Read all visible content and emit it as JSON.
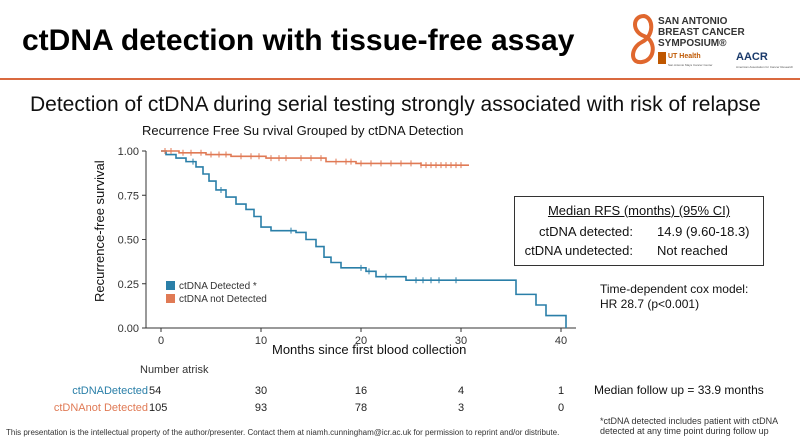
{
  "slide": {
    "title": "ctDNA detection with tissue-free assay",
    "subtitle": "Detection of ctDNA during serial testing strongly associated with risk of relapse"
  },
  "logo": {
    "line1": "SAN ANTONIO",
    "line2": "BREAST CANCER",
    "line3": "SYMPOSIUM®",
    "org1": "UT Health",
    "org1_sub": "San Antonio Mays Cancer Center",
    "org2": "AACR",
    "org2_sub": "American Association for Cancer Research"
  },
  "chart_data": {
    "type": "line",
    "title": "Recurrence Free Su rvival Grouped  by ctDNA Detection",
    "xlabel": "Months since first blood collection",
    "ylabel": "Recurrence-free survival",
    "xlim": [
      -1.5,
      41.5
    ],
    "ylim": [
      0,
      1
    ],
    "x_ticks": [
      0,
      10,
      20,
      30,
      40
    ],
    "y_ticks": [
      0.0,
      0.25,
      0.5,
      0.75,
      1.0
    ],
    "y_tick_labels": [
      "0.00",
      "0.25",
      "0.50",
      "0.75",
      "1.00"
    ],
    "series": [
      {
        "name": "ctDNA Detected *",
        "color": "#2a7fa8",
        "steps": [
          [
            0,
            1.0
          ],
          [
            0.5,
            0.98
          ],
          [
            1.5,
            0.96
          ],
          [
            2.5,
            0.94
          ],
          [
            3.5,
            0.91
          ],
          [
            4.2,
            0.87
          ],
          [
            4.8,
            0.83
          ],
          [
            5.5,
            0.78
          ],
          [
            6.5,
            0.74
          ],
          [
            7.5,
            0.7
          ],
          [
            8.5,
            0.67
          ],
          [
            9.3,
            0.63
          ],
          [
            10.0,
            0.57
          ],
          [
            11.0,
            0.55
          ],
          [
            13.5,
            0.54
          ],
          [
            14.5,
            0.5
          ],
          [
            15.5,
            0.46
          ],
          [
            16.3,
            0.4
          ],
          [
            17.0,
            0.37
          ],
          [
            18.0,
            0.34
          ],
          [
            20.5,
            0.32
          ],
          [
            21.5,
            0.29
          ],
          [
            24.5,
            0.27
          ],
          [
            33.0,
            0.27
          ],
          [
            35.5,
            0.19
          ],
          [
            37.5,
            0.13
          ],
          [
            38.5,
            0.07
          ],
          [
            39.5,
            0.07
          ],
          [
            40.5,
            0.0
          ]
        ],
        "end_x": 40.5,
        "censor_x": [
          3.2,
          6.0,
          13.0,
          20.0,
          20.8,
          22.5,
          25.5,
          26.2,
          27.0,
          27.8,
          29.5
        ]
      },
      {
        "name": "ctDNA not Detected",
        "color": "#e07a55",
        "steps": [
          [
            0,
            1.0
          ],
          [
            1.8,
            0.99
          ],
          [
            4.5,
            0.98
          ],
          [
            7.0,
            0.97
          ],
          [
            10.5,
            0.96
          ],
          [
            16.5,
            0.94
          ],
          [
            19.5,
            0.93
          ],
          [
            26.0,
            0.92
          ]
        ],
        "end_x": 30.8,
        "censor_x": [
          0.4,
          1.0,
          2.2,
          3.0,
          4.0,
          5.0,
          5.8,
          6.5,
          8.0,
          9.0,
          9.8,
          11.0,
          11.8,
          12.5,
          14.0,
          15.0,
          16.0,
          17.5,
          18.5,
          19.0,
          20.0,
          21.0,
          22.0,
          23.0,
          24.0,
          25.0,
          26.0,
          26.5,
          27.0,
          27.5,
          28.0,
          28.5,
          29.0,
          29.5,
          30.0
        ]
      }
    ],
    "legend": [
      "ctDNA Detected *",
      "ctDNA not Detected"
    ]
  },
  "rfs_box": {
    "header": "Median RFS (months) (95% CI)",
    "rows": [
      {
        "label": "ctDNA detected:",
        "value": "14.9 (9.60-18.3)"
      },
      {
        "label": "ctDNA undetected:",
        "value": "Not reached"
      }
    ]
  },
  "cox": {
    "line1": "Time-dependent cox model:",
    "line2": "HR 28.7 (p<0.001)"
  },
  "risk_table": {
    "title": "Number atrisk",
    "rows": [
      {
        "label": "ctDNADetected",
        "color": "#2a7fa8",
        "values": [
          "54",
          "30",
          "16",
          "4",
          "1"
        ]
      },
      {
        "label": "ctDNAnot Detected",
        "color": "#e07a55",
        "values": [
          "105",
          "93",
          "78",
          "3",
          "0"
        ]
      }
    ]
  },
  "followup": "Median follow up = 33.9 months",
  "footnote": "*ctDNA detected includes patient with ctDNA detected at any time point during follow up",
  "legal": "This presentation is the intellectual property of the author/presenter. Contact them at niamh.cunningham@icr.ac.uk for permission to reprint and/or distribute."
}
